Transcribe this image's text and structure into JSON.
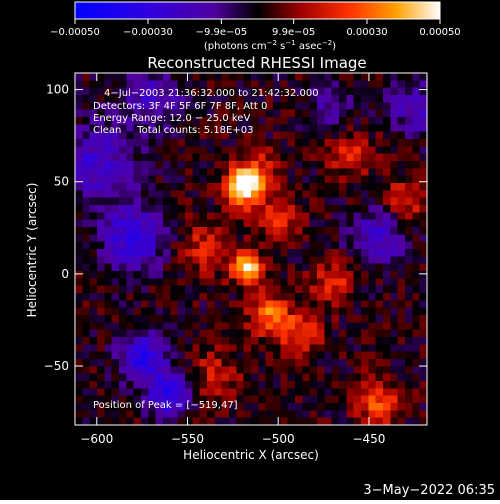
{
  "chart_data": {
    "type": "heatmap",
    "title": "Reconstructed RHESSI Image",
    "xlabel": "Heliocentric X (arcsec)",
    "ylabel": "Heliocentric Y (arcsec)",
    "xlim": [
      -612,
      -418
    ],
    "ylim": [
      -82,
      109
    ],
    "x_ticks": [
      -600,
      -550,
      -500,
      -450
    ],
    "x_tick_labels": [
      "−600",
      "−550",
      "−500",
      "−450"
    ],
    "y_ticks": [
      -50,
      0,
      50,
      100
    ],
    "y_tick_labels": [
      "−50",
      "0",
      "50",
      "100"
    ],
    "colorbar": {
      "min": -0.0005,
      "max": 0.0005,
      "ticks": [
        -0.0005,
        -0.0003,
        -9.9e-05,
        9.9e-05,
        0.0003,
        0.0005
      ],
      "tick_labels": [
        "−0.00050",
        "−0.00030",
        "−9.9e−05",
        "9.9e−05",
        "0.00030",
        "0.00050"
      ],
      "label_main": "(photons cm",
      "label_exp1": "−2",
      "label_mid": " s",
      "label_exp2": "−1",
      "label_mid2": " asec",
      "label_exp3": "−2",
      "label_end": ")",
      "colormap": "rhessi-bipolar",
      "colors": {
        "neg_low": "#0000ff",
        "neg_mid": "#5a00c0",
        "zero": "#000000",
        "pos_mid": "#ff3000",
        "pos_high": "#ffffff"
      }
    },
    "annotations": [
      "4−Jul−2003 21:36:32.000 to 21:42:32.000",
      "Detectors: 3F 4F 5F 6F 7F 8F, Att 0",
      "Energy Range: 12.0 − 25.0 keV",
      "Clean     Total counts: 5.18E+03"
    ],
    "peak_label": "Position of Peak = [−519,47]",
    "peak_position": [
      -519,
      47
    ],
    "sources": [
      {
        "x": -519,
        "y": 47,
        "amplitude": 0.0005,
        "sigma": 7
      },
      {
        "x": -517,
        "y": 3,
        "amplitude": 0.00045,
        "sigma": 6
      },
      {
        "x": -512,
        "y": 55,
        "amplitude": 0.0002,
        "sigma": 9
      },
      {
        "x": -500,
        "y": 30,
        "amplitude": 0.0002,
        "sigma": 8
      },
      {
        "x": -505,
        "y": -22,
        "amplitude": 0.0003,
        "sigma": 8
      },
      {
        "x": -488,
        "y": -33,
        "amplitude": 0.00025,
        "sigma": 8
      },
      {
        "x": -470,
        "y": -5,
        "amplitude": 0.00022,
        "sigma": 8
      },
      {
        "x": -540,
        "y": 15,
        "amplitude": 0.00018,
        "sigma": 10
      },
      {
        "x": -460,
        "y": 65,
        "amplitude": 0.00018,
        "sigma": 9
      },
      {
        "x": -430,
        "y": 40,
        "amplitude": 0.0002,
        "sigma": 8
      },
      {
        "x": -445,
        "y": -70,
        "amplitude": 0.00025,
        "sigma": 9
      },
      {
        "x": -535,
        "y": -55,
        "amplitude": 0.00015,
        "sigma": 10
      },
      {
        "x": -580,
        "y": 20,
        "amplitude": -0.0003,
        "sigma": 12
      },
      {
        "x": -575,
        "y": -45,
        "amplitude": -0.00035,
        "sigma": 9
      },
      {
        "x": -560,
        "y": -65,
        "amplitude": -0.0004,
        "sigma": 8
      },
      {
        "x": -600,
        "y": 60,
        "amplitude": -0.00025,
        "sigma": 14
      },
      {
        "x": -570,
        "y": 95,
        "amplitude": -0.0002,
        "sigma": 12
      },
      {
        "x": -445,
        "y": 20,
        "amplitude": -0.00025,
        "sigma": 10
      },
      {
        "x": -425,
        "y": 90,
        "amplitude": -0.0002,
        "sigma": 10
      },
      {
        "x": -470,
        "y": 90,
        "amplitude": -0.00015,
        "sigma": 9
      }
    ],
    "grid": false
  },
  "footer": {
    "timestamp": "3−May−2022 06:35"
  }
}
